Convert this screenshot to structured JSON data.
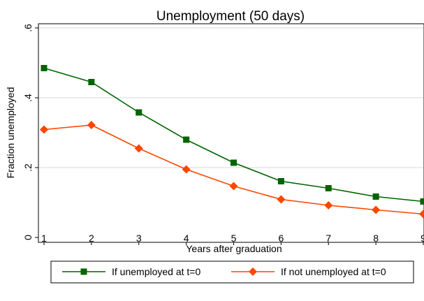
{
  "chart_data": {
    "type": "line",
    "title": "Unemployment (50 days)",
    "xlabel": "Years after graduation",
    "ylabel": "Fraction unemployed",
    "x": [
      1,
      2,
      3,
      4,
      5,
      6,
      7,
      8,
      9
    ],
    "x_ticks": [
      1,
      2,
      3,
      4,
      5,
      6,
      7,
      8,
      9
    ],
    "x_tick_labels": [
      "1",
      "2",
      "3",
      "4",
      "5",
      "6",
      "7",
      "8",
      "9"
    ],
    "y_ticks": [
      0,
      0.2,
      0.4,
      0.6
    ],
    "y_tick_labels": [
      "0",
      ".2",
      ".4",
      ".6"
    ],
    "xlim": [
      1,
      9
    ],
    "ylim": [
      0,
      0.6
    ],
    "grid": "horizontal",
    "legend_position": "bottom",
    "series": [
      {
        "name": "If unemployed at t=0",
        "color": "#006400",
        "marker": "square",
        "values": [
          0.485,
          0.445,
          0.358,
          0.28,
          0.214,
          0.161,
          0.141,
          0.117,
          0.103
        ]
      },
      {
        "name": "If not unemployed at t=0",
        "color": "#ff4500",
        "marker": "diamond",
        "values": [
          0.309,
          0.322,
          0.255,
          0.195,
          0.147,
          0.109,
          0.092,
          0.079,
          0.067
        ]
      }
    ]
  }
}
